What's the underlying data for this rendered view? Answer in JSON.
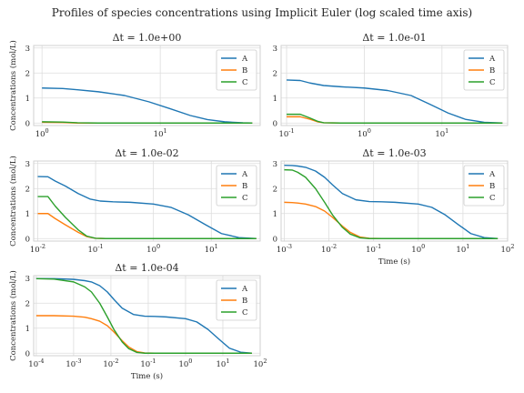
{
  "suptitle": "Profiles of species concentrations using Implicit Euler (log scaled time axis)",
  "colors": {
    "A": "#1f77b4",
    "B": "#ff7f0e",
    "C": "#2ca02c",
    "grid": "#dddddd",
    "frame": "#cccccc"
  },
  "chart_data": [
    {
      "type": "line",
      "title": "Δt = 1.0e+00",
      "xscale": "log",
      "xlim": [
        0.85,
        70
      ],
      "ylim": [
        -0.1,
        3.1
      ],
      "xticks": [
        {
          "v": 1,
          "label": "10^0"
        },
        {
          "v": 10,
          "label": "10^1"
        }
      ],
      "yticks": [
        0,
        1,
        2,
        3
      ],
      "xlabel": "",
      "ylabel": "Concentrations (mol/L)",
      "legend": "top-right",
      "series": [
        {
          "name": "A",
          "x": [
            1,
            1.5,
            2,
            3,
            5,
            8,
            12,
            18,
            25,
            35,
            50,
            60
          ],
          "y": [
            1.4,
            1.38,
            1.33,
            1.25,
            1.1,
            0.85,
            0.58,
            0.3,
            0.14,
            0.05,
            0.01,
            0.0
          ]
        },
        {
          "name": "B",
          "x": [
            1,
            1.5,
            2,
            3,
            5,
            10,
            60
          ],
          "y": [
            0.03,
            0.02,
            0.0,
            0.0,
            0.0,
            0.0,
            0.0
          ]
        },
        {
          "name": "C",
          "x": [
            1,
            1.5,
            2,
            3,
            5,
            10,
            60
          ],
          "y": [
            0.05,
            0.04,
            0.01,
            0.0,
            0.0,
            0.0,
            0.0
          ]
        }
      ]
    },
    {
      "type": "line",
      "title": "Δt = 1.0e-01",
      "xscale": "log",
      "xlim": [
        0.085,
        70
      ],
      "ylim": [
        -0.1,
        3.1
      ],
      "xticks": [
        {
          "v": 0.1,
          "label": "10^-1"
        },
        {
          "v": 1,
          "label": "10^0"
        },
        {
          "v": 10,
          "label": "10^1"
        }
      ],
      "yticks": [
        0,
        1,
        2,
        3
      ],
      "xlabel": "",
      "ylabel": "",
      "legend": "top-right",
      "series": [
        {
          "name": "A",
          "x": [
            0.1,
            0.15,
            0.2,
            0.3,
            0.5,
            1,
            2,
            4,
            7,
            12,
            20,
            35,
            60
          ],
          "y": [
            1.72,
            1.7,
            1.6,
            1.5,
            1.45,
            1.4,
            1.3,
            1.1,
            0.75,
            0.4,
            0.15,
            0.03,
            0.0
          ]
        },
        {
          "name": "B",
          "x": [
            0.1,
            0.15,
            0.2,
            0.25,
            0.3,
            0.5,
            1,
            60
          ],
          "y": [
            0.25,
            0.25,
            0.15,
            0.05,
            0.01,
            0.0,
            0.0,
            0.0
          ]
        },
        {
          "name": "C",
          "x": [
            0.1,
            0.15,
            0.2,
            0.25,
            0.3,
            0.5,
            1,
            60
          ],
          "y": [
            0.35,
            0.35,
            0.2,
            0.07,
            0.01,
            0.0,
            0.0,
            0.0
          ]
        }
      ]
    },
    {
      "type": "line",
      "title": "Δt = 1.0e-02",
      "xscale": "log",
      "xlim": [
        0.0085,
        70
      ],
      "ylim": [
        -0.1,
        3.1
      ],
      "xticks": [
        {
          "v": 0.01,
          "label": "10^-2"
        },
        {
          "v": 0.1,
          "label": "10^-1"
        },
        {
          "v": 1,
          "label": "10^0"
        },
        {
          "v": 10,
          "label": "10^1"
        }
      ],
      "yticks": [
        0,
        1,
        2,
        3
      ],
      "xlabel": "",
      "ylabel": "Concentrations (mol/L)",
      "legend": "top-right",
      "series": [
        {
          "name": "A",
          "x": [
            0.01,
            0.015,
            0.02,
            0.03,
            0.05,
            0.08,
            0.12,
            0.2,
            0.4,
            1,
            2,
            4,
            8,
            15,
            30,
            60
          ],
          "y": [
            2.48,
            2.47,
            2.3,
            2.1,
            1.8,
            1.58,
            1.5,
            1.47,
            1.45,
            1.38,
            1.25,
            0.95,
            0.55,
            0.2,
            0.04,
            0.0
          ]
        },
        {
          "name": "B",
          "x": [
            0.01,
            0.015,
            0.02,
            0.03,
            0.05,
            0.07,
            0.1,
            0.15,
            0.3,
            1,
            60
          ],
          "y": [
            1.0,
            1.0,
            0.8,
            0.55,
            0.25,
            0.08,
            0.01,
            0.0,
            0.0,
            0.0,
            0.0
          ]
        },
        {
          "name": "C",
          "x": [
            0.01,
            0.015,
            0.02,
            0.03,
            0.05,
            0.07,
            0.1,
            0.15,
            0.3,
            1,
            60
          ],
          "y": [
            1.68,
            1.68,
            1.3,
            0.85,
            0.35,
            0.1,
            0.01,
            0.0,
            0.0,
            0.0,
            0.0
          ]
        }
      ]
    },
    {
      "type": "line",
      "title": "Δt = 1.0e-03",
      "xscale": "log",
      "xlim": [
        0.00085,
        100
      ],
      "ylim": [
        -0.1,
        3.1
      ],
      "xticks": [
        {
          "v": 0.001,
          "label": "10^-3"
        },
        {
          "v": 0.01,
          "label": "10^-2"
        },
        {
          "v": 0.1,
          "label": "10^-1"
        },
        {
          "v": 1,
          "label": "10^0"
        },
        {
          "v": 10,
          "label": "10^1"
        },
        {
          "v": 100,
          "label": "10^2"
        }
      ],
      "yticks": [
        0,
        1,
        2,
        3
      ],
      "xlabel": "Time (s)",
      "ylabel": "",
      "legend": "top-right",
      "series": [
        {
          "name": "A",
          "x": [
            0.001,
            0.0015,
            0.002,
            0.003,
            0.005,
            0.008,
            0.012,
            0.02,
            0.04,
            0.08,
            0.15,
            0.3,
            1,
            2,
            4,
            8,
            15,
            30,
            60
          ],
          "y": [
            2.93,
            2.92,
            2.9,
            2.85,
            2.7,
            2.45,
            2.15,
            1.8,
            1.55,
            1.48,
            1.47,
            1.45,
            1.38,
            1.25,
            0.95,
            0.55,
            0.2,
            0.04,
            0.0
          ]
        },
        {
          "name": "B",
          "x": [
            0.001,
            0.0015,
            0.002,
            0.003,
            0.005,
            0.008,
            0.012,
            0.02,
            0.03,
            0.05,
            0.08,
            0.15,
            1,
            60
          ],
          "y": [
            1.45,
            1.44,
            1.42,
            1.38,
            1.28,
            1.1,
            0.85,
            0.5,
            0.25,
            0.06,
            0.01,
            0.0,
            0.0,
            0.0
          ]
        },
        {
          "name": "C",
          "x": [
            0.001,
            0.0015,
            0.002,
            0.003,
            0.005,
            0.008,
            0.012,
            0.02,
            0.03,
            0.05,
            0.08,
            0.15,
            1,
            60
          ],
          "y": [
            2.75,
            2.74,
            2.65,
            2.45,
            2.0,
            1.45,
            0.95,
            0.45,
            0.18,
            0.03,
            0.0,
            0.0,
            0.0,
            0.0
          ]
        }
      ]
    },
    {
      "type": "line",
      "title": "Δt = 1.0e-04",
      "xscale": "log",
      "xlim": [
        8.5e-05,
        100
      ],
      "ylim": [
        -0.1,
        3.1
      ],
      "xticks": [
        {
          "v": 0.0001,
          "label": "10^-4"
        },
        {
          "v": 0.001,
          "label": "10^-3"
        },
        {
          "v": 0.01,
          "label": "10^-2"
        },
        {
          "v": 0.1,
          "label": "10^-1"
        },
        {
          "v": 1,
          "label": "10^0"
        },
        {
          "v": 10,
          "label": "10^1"
        },
        {
          "v": 100,
          "label": "10^2"
        }
      ],
      "yticks": [
        0,
        1,
        2,
        3
      ],
      "xlabel": "Time (s)",
      "ylabel": "Concentrations (mol/L)",
      "legend": "top-right",
      "series": [
        {
          "name": "A",
          "x": [
            0.0001,
            0.0003,
            0.001,
            0.002,
            0.003,
            0.005,
            0.008,
            0.012,
            0.02,
            0.04,
            0.08,
            0.15,
            0.3,
            1,
            2,
            4,
            8,
            15,
            30,
            60
          ],
          "y": [
            2.98,
            2.98,
            2.95,
            2.9,
            2.85,
            2.7,
            2.45,
            2.15,
            1.8,
            1.55,
            1.48,
            1.47,
            1.45,
            1.38,
            1.25,
            0.95,
            0.55,
            0.2,
            0.04,
            0.0
          ]
        },
        {
          "name": "B",
          "x": [
            0.0001,
            0.0003,
            0.001,
            0.002,
            0.003,
            0.005,
            0.008,
            0.012,
            0.02,
            0.03,
            0.05,
            0.08,
            0.15,
            1,
            60
          ],
          "y": [
            1.5,
            1.5,
            1.48,
            1.44,
            1.38,
            1.28,
            1.1,
            0.85,
            0.5,
            0.25,
            0.06,
            0.01,
            0.0,
            0.0,
            0.0
          ]
        },
        {
          "name": "C",
          "x": [
            0.0001,
            0.0003,
            0.001,
            0.002,
            0.003,
            0.005,
            0.008,
            0.012,
            0.02,
            0.03,
            0.05,
            0.08,
            0.15,
            1,
            60
          ],
          "y": [
            2.98,
            2.96,
            2.85,
            2.65,
            2.45,
            2.0,
            1.45,
            0.95,
            0.45,
            0.18,
            0.03,
            0.0,
            0.0,
            0.0,
            0.0
          ]
        }
      ]
    }
  ]
}
